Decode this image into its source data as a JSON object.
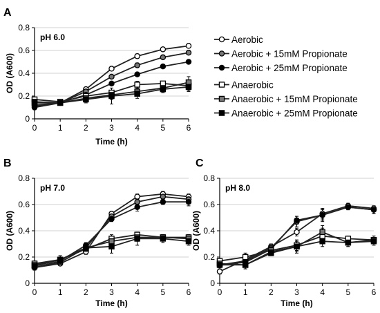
{
  "figure": {
    "legend": [
      {
        "label": "Aerobic",
        "marker": "circle-open"
      },
      {
        "label": "Aerobic + 15mM Propionate",
        "marker": "circle-gray"
      },
      {
        "label": "Aerobic + 25mM Propionate",
        "marker": "circle-filled"
      },
      {
        "label": "Anaerobic",
        "marker": "square-open"
      },
      {
        "label": "Anaerobic + 15mM Propionate",
        "marker": "square-gray"
      },
      {
        "label": "Anaerobic + 25mM Propionate",
        "marker": "square-filled"
      }
    ],
    "colors": {
      "open": "#ffffff",
      "gray": "#777777",
      "filled": "#000000",
      "line": "#222222",
      "grid": "#d0d0d0"
    }
  },
  "chart_data": [
    {
      "type": "line",
      "panel": "A",
      "annotation": "pH 6.0",
      "xlabel": "Time (h)",
      "ylabel": "OD (A600)",
      "x": [
        0,
        1,
        2,
        3,
        4,
        5,
        6
      ],
      "xlim": [
        0,
        6
      ],
      "ylim": [
        0,
        0.8
      ],
      "xticks": [
        "0",
        "1",
        "2",
        "3",
        "4",
        "5",
        "6"
      ],
      "yticks": [
        "0",
        "0.2",
        "0.4",
        "0.6",
        "0.8"
      ],
      "grid": "horizontal",
      "series": [
        {
          "name": "Aerobic",
          "values": [
            0.12,
            0.14,
            0.26,
            0.44,
            0.55,
            0.61,
            0.64
          ],
          "errors": [
            0.02,
            0.01,
            0.01,
            0.01,
            0.02,
            0.01,
            0.01
          ]
        },
        {
          "name": "Aerobic + 15mM Propionate",
          "values": [
            0.11,
            0.14,
            0.24,
            0.37,
            0.47,
            0.54,
            0.58
          ],
          "errors": [
            0.02,
            0.01,
            0.01,
            0.01,
            0.02,
            0.01,
            0.01
          ]
        },
        {
          "name": "Aerobic + 25mM Propionate",
          "values": [
            0.1,
            0.14,
            0.21,
            0.31,
            0.39,
            0.46,
            0.5
          ],
          "errors": [
            0.02,
            0.01,
            0.01,
            0.01,
            0.01,
            0.01,
            0.01
          ]
        },
        {
          "name": "Anaerobic",
          "values": [
            0.17,
            0.15,
            0.2,
            0.23,
            0.3,
            0.31,
            0.29
          ],
          "errors": [
            0.02,
            0.02,
            0.03,
            0.04,
            0.03,
            0.02,
            0.04
          ]
        },
        {
          "name": "Anaerobic + 15mM Propionate",
          "values": [
            0.15,
            0.14,
            0.18,
            0.21,
            0.24,
            0.27,
            0.32
          ],
          "errors": [
            0.02,
            0.02,
            0.03,
            0.04,
            0.04,
            0.03,
            0.05
          ]
        },
        {
          "name": "Anaerobic + 25mM Propionate",
          "values": [
            0.14,
            0.14,
            0.17,
            0.2,
            0.22,
            0.26,
            0.28
          ],
          "errors": [
            0.02,
            0.02,
            0.03,
            0.07,
            0.04,
            0.03,
            0.04
          ]
        }
      ]
    },
    {
      "type": "line",
      "panel": "B",
      "annotation": "pH 7.0",
      "xlabel": "Time (h)",
      "ylabel": "OD (A600)",
      "x": [
        0,
        1,
        2,
        3,
        4,
        5,
        6
      ],
      "xlim": [
        0,
        6
      ],
      "ylim": [
        0,
        0.8
      ],
      "xticks": [
        "0",
        "1",
        "2",
        "3",
        "4",
        "5",
        "6"
      ],
      "yticks": [
        "0",
        "0.2",
        "0.4",
        "0.6",
        "0.8"
      ],
      "grid": "horizontal",
      "series": [
        {
          "name": "Aerobic",
          "values": [
            0.12,
            0.15,
            0.24,
            0.53,
            0.66,
            0.68,
            0.66
          ],
          "errors": [
            0.02,
            0.01,
            0.02,
            0.01,
            0.02,
            0.02,
            0.02
          ]
        },
        {
          "name": "Aerobic + 15mM Propionate",
          "values": [
            0.12,
            0.16,
            0.27,
            0.51,
            0.62,
            0.66,
            0.64
          ],
          "errors": [
            0.02,
            0.01,
            0.02,
            0.02,
            0.02,
            0.02,
            0.02
          ]
        },
        {
          "name": "Aerobic + 25mM Propionate",
          "values": [
            0.12,
            0.17,
            0.29,
            0.49,
            0.58,
            0.62,
            0.62
          ],
          "errors": [
            0.02,
            0.02,
            0.02,
            0.02,
            0.03,
            0.02,
            0.03
          ]
        },
        {
          "name": "Anaerobic",
          "values": [
            0.15,
            0.18,
            0.26,
            0.34,
            0.37,
            0.35,
            0.35
          ],
          "errors": [
            0.02,
            0.02,
            0.02,
            0.03,
            0.02,
            0.02,
            0.02
          ]
        },
        {
          "name": "Anaerobic + 15mM Propionate",
          "values": [
            0.14,
            0.18,
            0.27,
            0.32,
            0.35,
            0.35,
            0.34
          ],
          "errors": [
            0.02,
            0.03,
            0.03,
            0.04,
            0.03,
            0.02,
            0.03
          ]
        },
        {
          "name": "Anaerobic + 25mM Propionate",
          "values": [
            0.13,
            0.18,
            0.27,
            0.28,
            0.34,
            0.34,
            0.32
          ],
          "errors": [
            0.02,
            0.03,
            0.03,
            0.05,
            0.05,
            0.03,
            0.03
          ]
        }
      ]
    },
    {
      "type": "line",
      "panel": "C",
      "annotation": "pH 8.0",
      "xlabel": "Time (h)",
      "ylabel": "OD (A600)",
      "x": [
        0,
        1,
        2,
        3,
        4,
        5,
        6
      ],
      "xlim": [
        0,
        6
      ],
      "ylim": [
        0,
        0.8
      ],
      "xticks": [
        "0",
        "1",
        "2",
        "3",
        "4",
        "5",
        "6"
      ],
      "yticks": [
        "0",
        "0.2",
        "0.4",
        "0.6",
        "0.8"
      ],
      "grid": "horizontal",
      "series": [
        {
          "name": "Aerobic",
          "values": [
            0.09,
            0.18,
            0.28,
            0.39,
            0.53,
            0.59,
            0.57
          ],
          "errors": [
            0.02,
            0.02,
            0.02,
            0.03,
            0.04,
            0.02,
            0.02
          ]
        },
        {
          "name": "Aerobic + 15mM Propionate",
          "values": [
            0.14,
            0.17,
            0.27,
            0.47,
            0.52,
            0.58,
            0.56
          ],
          "errors": [
            0.02,
            0.02,
            0.02,
            0.04,
            0.04,
            0.02,
            0.03
          ]
        },
        {
          "name": "Aerobic + 25mM Propionate",
          "values": [
            0.14,
            0.16,
            0.26,
            0.48,
            0.52,
            0.58,
            0.56
          ],
          "errors": [
            0.02,
            0.02,
            0.02,
            0.03,
            0.05,
            0.02,
            0.03
          ]
        },
        {
          "name": "Anaerobic",
          "values": [
            0.17,
            0.2,
            0.25,
            0.29,
            0.36,
            0.34,
            0.33
          ],
          "errors": [
            0.02,
            0.03,
            0.02,
            0.04,
            0.06,
            0.02,
            0.03
          ]
        },
        {
          "name": "Anaerobic + 15mM Propionate",
          "values": [
            0.15,
            0.14,
            0.24,
            0.28,
            0.39,
            0.31,
            0.33
          ],
          "errors": [
            0.02,
            0.03,
            0.02,
            0.04,
            0.05,
            0.03,
            0.03
          ]
        },
        {
          "name": "Anaerobic + 25mM Propionate",
          "values": [
            0.14,
            0.14,
            0.23,
            0.28,
            0.32,
            0.31,
            0.32
          ],
          "errors": [
            0.02,
            0.03,
            0.02,
            0.05,
            0.04,
            0.03,
            0.03
          ]
        }
      ]
    }
  ]
}
